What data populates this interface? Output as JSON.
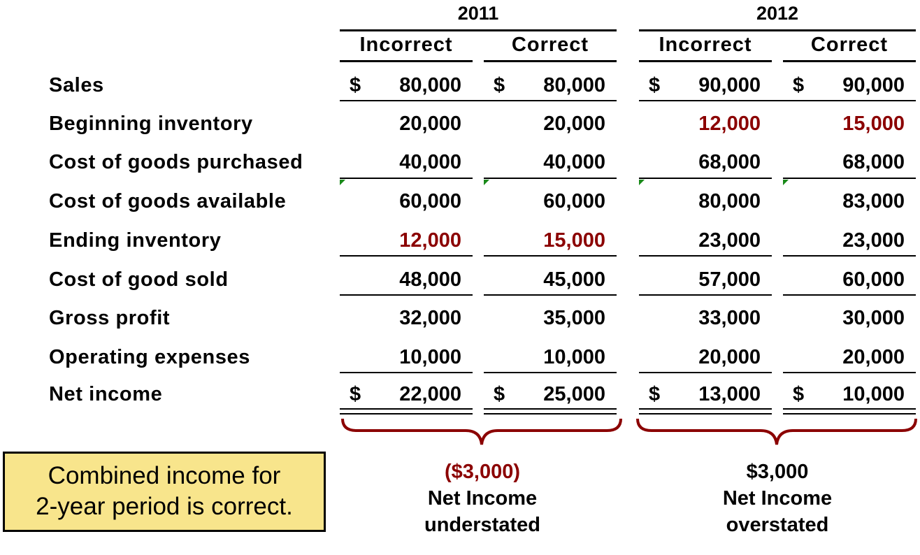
{
  "header": {
    "years": [
      "2011",
      "2012"
    ],
    "columns": [
      "Incorrect",
      "Correct",
      "Incorrect",
      "Correct"
    ]
  },
  "currency_symbol": "$",
  "rows": [
    {
      "label": "Sales",
      "values": [
        "80,000",
        "80,000",
        "90,000",
        "90,000"
      ]
    },
    {
      "label": "Beginning inventory",
      "values": [
        "20,000",
        "20,000",
        "12,000",
        "15,000"
      ]
    },
    {
      "label": "Cost of goods purchased",
      "values": [
        "40,000",
        "40,000",
        "68,000",
        "68,000"
      ]
    },
    {
      "label": "Cost of goods available",
      "values": [
        "60,000",
        "60,000",
        "80,000",
        "83,000"
      ]
    },
    {
      "label": "Ending inventory",
      "values": [
        "12,000",
        "15,000",
        "23,000",
        "23,000"
      ]
    },
    {
      "label": "Cost of good sold",
      "values": [
        "48,000",
        "45,000",
        "57,000",
        "60,000"
      ]
    },
    {
      "label": "Gross profit",
      "values": [
        "32,000",
        "35,000",
        "33,000",
        "30,000"
      ]
    },
    {
      "label": "Operating expenses",
      "values": [
        "10,000",
        "10,000",
        "20,000",
        "20,000"
      ]
    },
    {
      "label": "Net income",
      "values": [
        "22,000",
        "25,000",
        "13,000",
        "10,000"
      ]
    }
  ],
  "highlight_color": "#8b0000",
  "callout": {
    "line1": "Combined income for",
    "line2": "2-year period is correct."
  },
  "notes": {
    "left": {
      "amount": "($3,000)",
      "line1": "Net Income",
      "line2": "understated"
    },
    "right": {
      "amount": "$3,000",
      "line1": "Net Income",
      "line2": "overstated"
    }
  }
}
